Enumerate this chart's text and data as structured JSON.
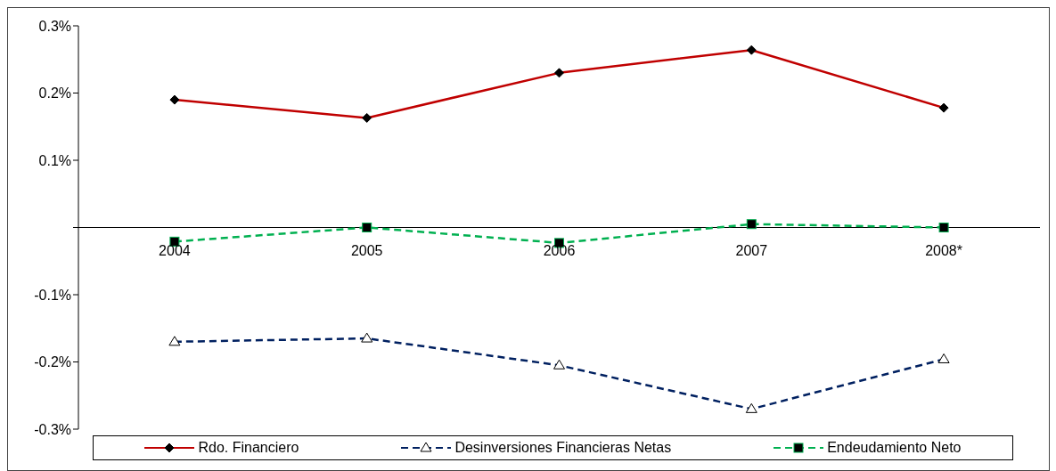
{
  "chart_data": {
    "type": "line",
    "categories": [
      "2004",
      "2005",
      "2006",
      "2007",
      "2008*"
    ],
    "series": [
      {
        "name": "Rdo. Financiero",
        "color": "#c00000",
        "marker": "diamond",
        "line_style": "solid",
        "values": [
          0.19,
          0.163,
          0.23,
          0.264,
          0.178
        ]
      },
      {
        "name": "Desinversiones Financieras Netas",
        "color": "#002060",
        "marker": "triangle",
        "line_style": "dashed",
        "values": [
          -0.17,
          -0.165,
          -0.205,
          -0.27,
          -0.196
        ]
      },
      {
        "name": "Endeudamiento Neto",
        "color": "#00b050",
        "marker": "square",
        "line_style": "dashed",
        "values": [
          -0.021,
          0.0,
          -0.023,
          0.005,
          0.0
        ]
      }
    ],
    "ylim": [
      -0.3,
      0.3
    ],
    "yticks": [
      {
        "value": 0.3,
        "label": "0.3%"
      },
      {
        "value": 0.2,
        "label": "0.2%"
      },
      {
        "value": 0.1,
        "label": "0.1%"
      },
      {
        "value": 0,
        "label": null
      },
      {
        "value": -0.1,
        "label": "-0.1%"
      },
      {
        "value": -0.2,
        "label": "-0.2%"
      },
      {
        "value": -0.3,
        "label": "-0.3%"
      }
    ],
    "legend": "bottom"
  }
}
